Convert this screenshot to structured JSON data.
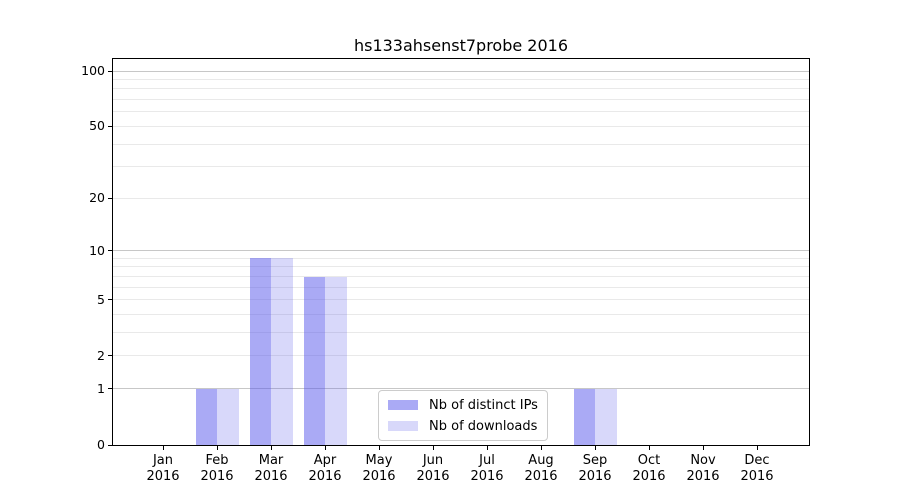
{
  "chart_data": {
    "type": "bar",
    "title": "hs133ahsenst7probe 2016",
    "x_categories": [
      "Jan",
      "Feb",
      "Mar",
      "Apr",
      "May",
      "Jun",
      "Jul",
      "Aug",
      "Sep",
      "Oct",
      "Nov",
      "Dec"
    ],
    "x_sublabel": "2016",
    "series": [
      {
        "name": "Nb of distinct IPs",
        "color": "#aaaaf0",
        "fill": "rgba(85,85,235,0.5)",
        "values": [
          0,
          1,
          9,
          7,
          0,
          0,
          0,
          0,
          1,
          0,
          0,
          0
        ]
      },
      {
        "name": "Nb of downloads",
        "color": "#d8d8f6",
        "fill": "rgba(85,85,235,0.23)",
        "values": [
          0,
          1,
          9,
          7,
          0,
          0,
          0,
          0,
          1,
          0,
          0,
          0
        ]
      }
    ],
    "y_scale": "log1p",
    "ylim": [
      0,
      100
    ],
    "y_ticks": [
      100,
      50,
      20,
      10,
      5,
      2,
      1,
      0
    ],
    "y_grid_major": [
      1,
      10,
      100
    ],
    "y_grid_minor": [
      2,
      3,
      4,
      5,
      6,
      7,
      8,
      9,
      20,
      30,
      40,
      50,
      60,
      70,
      80,
      90
    ],
    "grid": "on",
    "legend_position": "lower-center-inside"
  },
  "colors": {
    "spine": "#000000",
    "grid_major": "#c7c7c7",
    "grid_minor": "#e9e9e9",
    "legend_border": "#cccccc",
    "text": "#000000"
  }
}
